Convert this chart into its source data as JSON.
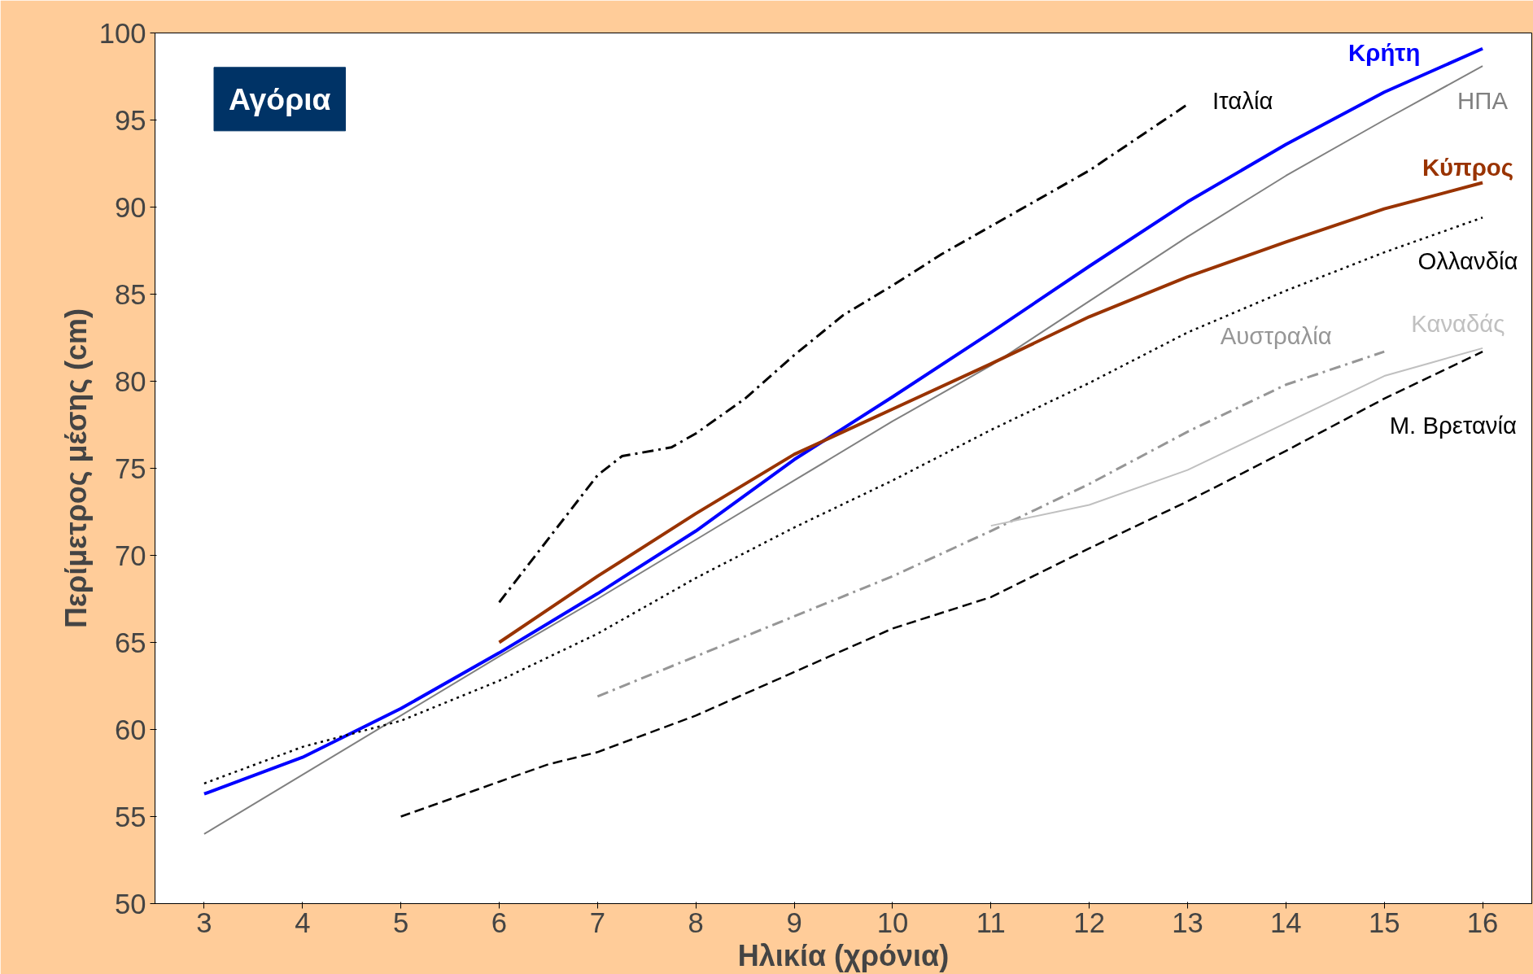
{
  "chart_data": {
    "type": "line",
    "title": "Αγόρια",
    "xlabel": "Ηλικία (χρόνια)",
    "ylabel": "Περίμετρος μέσης (cm)",
    "xlim": [
      2.5,
      16.5
    ],
    "xticks": [
      3,
      4,
      5,
      6,
      7,
      8,
      9,
      10,
      11,
      12,
      13,
      14,
      15,
      16
    ],
    "ylim": [
      50,
      100
    ],
    "yticks": [
      50,
      55,
      60,
      65,
      70,
      75,
      80,
      85,
      90,
      95,
      100
    ],
    "grid": false,
    "series": [
      {
        "name": "Κρήτη",
        "color": "#0000ff",
        "line_style": "solid",
        "x": [
          3,
          4,
          5,
          6,
          7,
          8,
          9,
          10,
          11,
          12,
          13,
          14,
          15,
          16
        ],
        "values": [
          56.3,
          58.4,
          61.2,
          64.4,
          67.8,
          71.4,
          75.5,
          79.1,
          82.8,
          86.6,
          90.3,
          93.6,
          96.6,
          99.1
        ]
      },
      {
        "name": "ΗΠΑ",
        "color": "#808080",
        "line_style": "solid",
        "x": [
          3,
          4,
          5,
          6,
          7,
          8,
          9,
          10,
          11,
          12,
          13,
          14,
          15,
          16
        ],
        "values": [
          54.0,
          57.4,
          60.8,
          64.2,
          67.5,
          70.9,
          74.3,
          77.7,
          80.9,
          84.6,
          88.3,
          91.8,
          95.0,
          98.1
        ]
      },
      {
        "name": "Κύπρος",
        "color": "#993300",
        "line_style": "solid",
        "x": [
          6,
          7,
          8,
          9,
          10,
          11,
          12,
          13,
          14,
          15,
          16
        ],
        "values": [
          65.0,
          68.8,
          72.4,
          75.8,
          78.4,
          81.0,
          83.7,
          86.0,
          88.0,
          89.9,
          91.4
        ]
      },
      {
        "name": "Ολλανδία",
        "color": "#000000",
        "line_style": "dotted",
        "x": [
          3,
          4,
          5,
          6,
          7,
          8,
          9,
          10,
          11,
          12,
          13,
          14,
          15,
          16
        ],
        "values": [
          56.9,
          59.0,
          60.5,
          62.8,
          65.5,
          68.7,
          71.6,
          74.3,
          77.2,
          79.9,
          82.8,
          85.2,
          87.4,
          89.4
        ]
      },
      {
        "name": "Ιταλία",
        "color": "#000000",
        "line_style": "dashdot",
        "x": [
          6,
          7,
          7.25,
          7.75,
          8,
          8.5,
          9,
          9.5,
          10,
          10.5,
          11,
          12,
          13
        ],
        "values": [
          67.3,
          74.6,
          75.7,
          76.2,
          77.0,
          79.0,
          81.5,
          83.8,
          85.5,
          87.3,
          88.9,
          92.1,
          95.9
        ]
      },
      {
        "name": "Αυστραλία",
        "color": "#969696",
        "line_style": "dashdot",
        "x": [
          7,
          8,
          9,
          10,
          11,
          12,
          13,
          14,
          15
        ],
        "values": [
          61.9,
          64.2,
          66.5,
          68.8,
          71.4,
          74.1,
          77.1,
          79.8,
          81.7
        ]
      },
      {
        "name": "Καναδάς",
        "color": "#c0c0c0",
        "line_style": "solid",
        "x": [
          11,
          12,
          13,
          14,
          15,
          15.5,
          16
        ],
        "values": [
          71.7,
          72.9,
          74.9,
          77.6,
          80.3,
          81.1,
          81.9
        ]
      },
      {
        "name": "Μ. Βρετανία",
        "color": "#000000",
        "line_style": "dashed",
        "x": [
          5,
          6,
          6.5,
          7,
          8,
          9,
          10,
          11,
          12,
          13,
          14,
          15,
          16
        ],
        "values": [
          55.0,
          57.0,
          58.0,
          58.7,
          60.8,
          63.3,
          65.8,
          67.6,
          70.4,
          73.1,
          76.0,
          79.0,
          81.7
        ]
      }
    ]
  }
}
